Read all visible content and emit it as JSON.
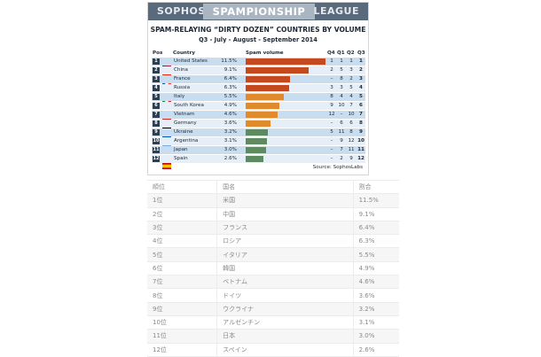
{
  "banner": {
    "left": "SOPHOS",
    "center": "SPAMPIONSHIP",
    "right": "LEAGUE"
  },
  "colors": {
    "top": "#c4491f",
    "mid": "#e08a2e",
    "low": "#5d8a60",
    "rowA": "#c9ddf0",
    "rowB": "#e6eef7"
  },
  "chart_data": {
    "type": "bar",
    "title": "SPAM-RELAYING “DIRTY DOZEN” COUNTRIES BY VOLUME",
    "subtitle": "Q3 - July - August - September 2014",
    "headers": {
      "pos": "Pos",
      "country": "Country",
      "volume": "Spam volume",
      "q4": "Q4",
      "q1": "Q1",
      "q2": "Q2",
      "q3": "Q3"
    },
    "rows": [
      {
        "pos": "1",
        "flag": "us-flag-icon",
        "country": "United States",
        "pct": "11.5%",
        "value": 11.5,
        "q4": "1",
        "q1": "1",
        "q2": "1",
        "q3": "1"
      },
      {
        "pos": "2",
        "flag": "cn-flag-icon",
        "country": "China",
        "pct": "9.1%",
        "value": 9.1,
        "q4": "2",
        "q1": "5",
        "q2": "3",
        "q3": "2"
      },
      {
        "pos": "3",
        "flag": "fr-flag-icon",
        "country": "France",
        "pct": "6.4%",
        "value": 6.4,
        "q4": "–",
        "q1": "8",
        "q2": "2",
        "q3": "3"
      },
      {
        "pos": "4",
        "flag": "ru-flag-icon",
        "country": "Russia",
        "pct": "6.3%",
        "value": 6.3,
        "q4": "3",
        "q1": "3",
        "q2": "5",
        "q3": "4"
      },
      {
        "pos": "5",
        "flag": "it-flag-icon",
        "country": "Italy",
        "pct": "5.5%",
        "value": 5.5,
        "q4": "8",
        "q1": "4",
        "q2": "4",
        "q3": "5"
      },
      {
        "pos": "6",
        "flag": "kr-flag-icon",
        "country": "South Korea",
        "pct": "4.9%",
        "value": 4.9,
        "q4": "9",
        "q1": "10",
        "q2": "7",
        "q3": "6"
      },
      {
        "pos": "7",
        "flag": "vn-flag-icon",
        "country": "Vietnam",
        "pct": "4.6%",
        "value": 4.6,
        "q4": "12",
        "q1": "–",
        "q2": "10",
        "q3": "7"
      },
      {
        "pos": "8",
        "flag": "de-flag-icon",
        "country": "Germany",
        "pct": "3.6%",
        "value": 3.6,
        "q4": "–",
        "q1": "6",
        "q2": "6",
        "q3": "8"
      },
      {
        "pos": "9",
        "flag": "ua-flag-icon",
        "country": "Ukraine",
        "pct": "3.2%",
        "value": 3.2,
        "q4": "5",
        "q1": "11",
        "q2": "8",
        "q3": "9"
      },
      {
        "pos": "10",
        "flag": "ar-flag-icon",
        "country": "Argentina",
        "pct": "3.1%",
        "value": 3.1,
        "q4": "–",
        "q1": "9",
        "q2": "12",
        "q3": "10"
      },
      {
        "pos": "11",
        "flag": "jp-flag-icon",
        "country": "Japan",
        "pct": "3.0%",
        "value": 3.0,
        "q4": "–",
        "q1": "7",
        "q2": "11",
        "q3": "11"
      },
      {
        "pos": "12",
        "flag": "es-flag-icon",
        "country": "Spain",
        "pct": "2.6%",
        "value": 2.6,
        "q4": "–",
        "q1": "2",
        "q2": "9",
        "q3": "12"
      }
    ],
    "source": "Source: SophosLabs"
  },
  "table": {
    "headers": [
      "順位",
      "国名",
      "割合"
    ],
    "rows": [
      [
        "1位",
        "米国",
        "11.5%"
      ],
      [
        "2位",
        "中国",
        "9.1%"
      ],
      [
        "3位",
        "フランス",
        "6.4%"
      ],
      [
        "4位",
        "ロシア",
        "6.3%"
      ],
      [
        "5位",
        "イタリア",
        "5.5%"
      ],
      [
        "6位",
        "韓国",
        "4.9%"
      ],
      [
        "7位",
        "ベトナム",
        "4.6%"
      ],
      [
        "8位",
        "ドイツ",
        "3.6%"
      ],
      [
        "9位",
        "ウクライナ",
        "3.2%"
      ],
      [
        "10位",
        "アルゼンチン",
        "3.1%"
      ],
      [
        "11位",
        "日本",
        "3.0%"
      ],
      [
        "12位",
        "スペイン",
        "2.6%"
      ]
    ]
  }
}
